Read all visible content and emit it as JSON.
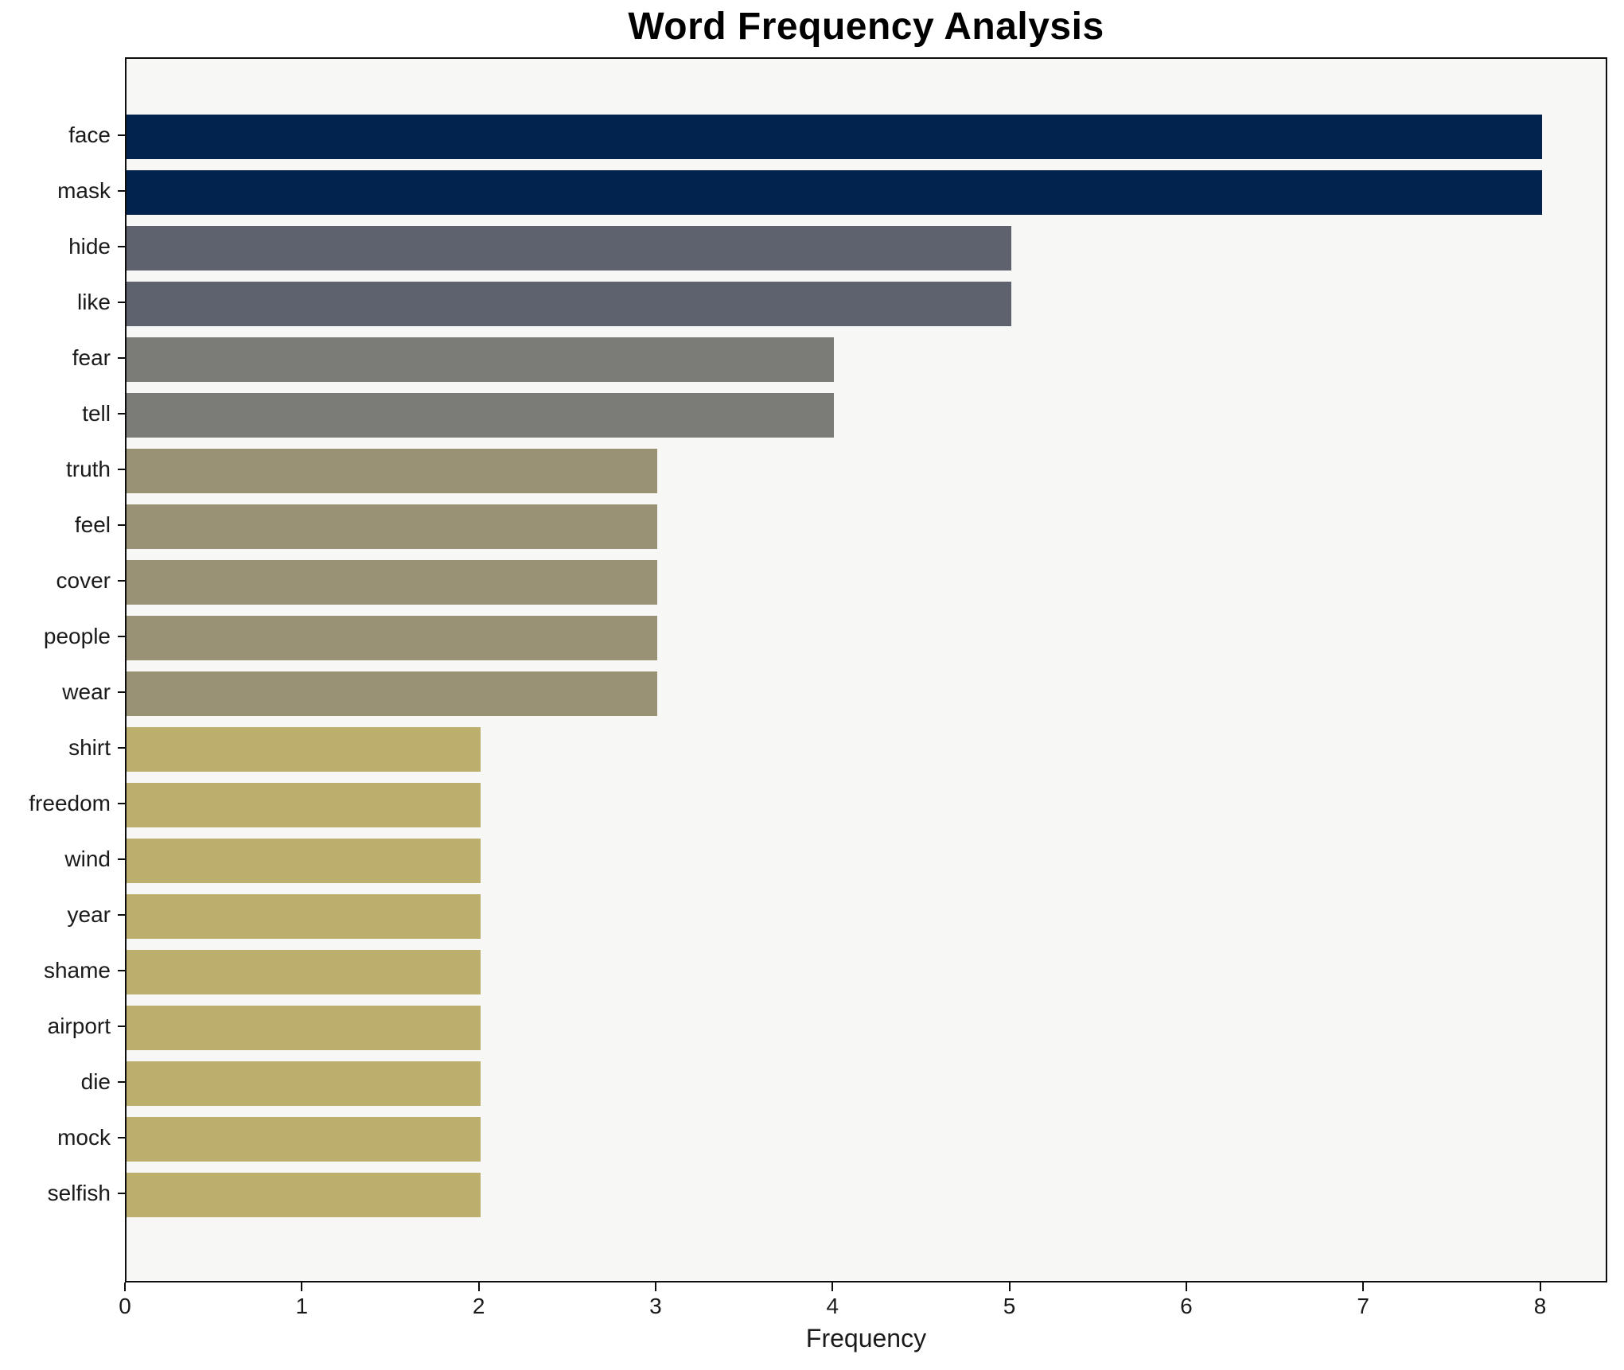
{
  "chart_data": {
    "type": "bar",
    "orientation": "horizontal",
    "title": "Word Frequency Analysis",
    "xlabel": "Frequency",
    "ylabel": "",
    "categories": [
      "face",
      "mask",
      "hide",
      "like",
      "fear",
      "tell",
      "truth",
      "feel",
      "cover",
      "people",
      "wear",
      "shirt",
      "freedom",
      "wind",
      "year",
      "shame",
      "airport",
      "die",
      "mock",
      "selfish"
    ],
    "values": [
      8,
      8,
      5,
      5,
      4,
      4,
      3,
      3,
      3,
      3,
      3,
      2,
      2,
      2,
      2,
      2,
      2,
      2,
      2,
      2
    ],
    "bar_colors": [
      "#02234e",
      "#02234e",
      "#5d626e",
      "#5d626e",
      "#7b7b77",
      "#7b7b77",
      "#9a9274",
      "#9a9274",
      "#9a9274",
      "#9a9274",
      "#9a9274",
      "#bcae6d",
      "#bcae6d",
      "#bcae6d",
      "#bcae6d",
      "#bcae6d",
      "#bcae6d",
      "#bcae6d",
      "#bcae6d",
      "#bcae6d"
    ],
    "xlim": [
      0,
      8.38
    ],
    "xticks": [
      0,
      1,
      2,
      3,
      4,
      5,
      6,
      7,
      8
    ],
    "grid": false,
    "legend": false,
    "plot_bg": "#f7f7f5",
    "figure_bg": "#ffffff",
    "spine_color": "#0e0e0e",
    "text_color": "#1a1a1a"
  }
}
